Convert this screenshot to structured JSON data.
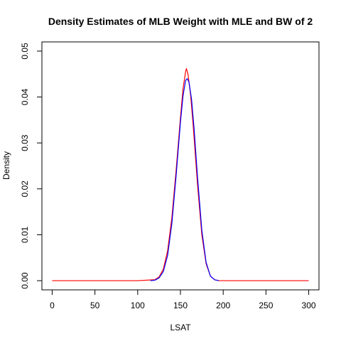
{
  "chart_data": {
    "type": "line",
    "title": "Density Estimates of MLB Weight with MLE and BW of 2",
    "xlabel": "LSAT",
    "ylabel": "Density",
    "xlim": [
      -12,
      312
    ],
    "ylim": [
      -0.002,
      0.052
    ],
    "x_ticks": [
      0,
      50,
      100,
      150,
      200,
      250,
      300
    ],
    "y_ticks": [
      0.0,
      0.01,
      0.02,
      0.03,
      0.04,
      0.05
    ],
    "x_tick_labels": [
      "0",
      "50",
      "100",
      "150",
      "200",
      "250",
      "300"
    ],
    "y_tick_labels": [
      "0.00",
      "0.01",
      "0.02",
      "0.03",
      "0.04",
      "0.05"
    ],
    "grid": false,
    "legend": "none",
    "series": [
      {
        "color": "#ff0000",
        "x": [
          0,
          100,
          120,
          125,
          130,
          135,
          140,
          145,
          150,
          153,
          156,
          157,
          159,
          162,
          165,
          170,
          175,
          180,
          185,
          190,
          195,
          200,
          250,
          300
        ],
        "y": [
          0,
          0,
          0.0002,
          0.0008,
          0.0025,
          0.0065,
          0.0138,
          0.0242,
          0.0355,
          0.0418,
          0.0455,
          0.0462,
          0.0448,
          0.0402,
          0.0335,
          0.0208,
          0.01,
          0.0037,
          0.001,
          0.0002,
          0,
          0,
          0,
          0
        ]
      },
      {
        "color": "#0000ff",
        "x": [
          115,
          120,
          125,
          130,
          135,
          140,
          145,
          150,
          153,
          156,
          158,
          160,
          163,
          166,
          170,
          175,
          180,
          185,
          190,
          195
        ],
        "y": [
          0,
          0.0001,
          0.0006,
          0.002,
          0.0055,
          0.0125,
          0.023,
          0.0345,
          0.0402,
          0.0436,
          0.044,
          0.0432,
          0.0395,
          0.033,
          0.0225,
          0.011,
          0.004,
          0.001,
          0.0002,
          0
        ]
      }
    ]
  }
}
